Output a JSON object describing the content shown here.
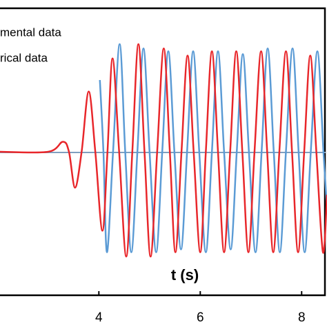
{
  "chart_data": {
    "type": "line",
    "x_label": "t (s)",
    "xlim": [
      2.05,
      8.5
    ],
    "xticks": [
      4,
      6,
      8
    ],
    "ylim": [
      -1,
      1
    ],
    "series": [
      {
        "name": "mental data",
        "color": "#5b9bd5",
        "x": [
          4.02,
          4.09,
          4.16,
          4.28,
          4.41,
          4.52,
          4.64,
          4.76,
          4.88,
          5.0,
          5.13,
          5.25,
          5.37,
          5.49,
          5.62,
          5.74,
          5.86,
          5.98,
          6.11,
          6.23,
          6.35,
          6.47,
          6.6,
          6.72,
          6.84,
          6.96,
          7.09,
          7.21,
          7.33,
          7.45,
          7.57,
          7.69,
          7.82,
          7.94,
          8.06,
          8.18,
          8.31,
          8.43,
          8.5
        ],
        "values": [
          0.5,
          0,
          -0.7,
          0,
          0.75,
          0,
          -0.7,
          0,
          0.72,
          0,
          -0.7,
          0,
          0.7,
          0,
          -0.68,
          0,
          0.7,
          0,
          -0.7,
          0,
          0.7,
          0,
          -0.68,
          0,
          0.68,
          0,
          -0.7,
          0,
          0.72,
          0,
          -0.7,
          0,
          0.72,
          0,
          -0.7,
          0,
          0.7,
          0,
          -0.4
        ]
      },
      {
        "name": "rical data",
        "color": "#e8262a",
        "x": [
          2.05,
          3.0,
          3.29,
          3.41,
          3.53,
          3.66,
          3.8,
          3.93,
          4.07,
          4.17,
          4.27,
          4.4,
          4.54,
          4.66,
          4.78,
          4.9,
          5.02,
          5.15,
          5.28,
          5.4,
          5.51,
          5.63,
          5.75,
          5.87,
          6.0,
          6.11,
          6.23,
          6.35,
          6.47,
          6.59,
          6.71,
          6.83,
          6.95,
          7.07,
          7.2,
          7.32,
          7.44,
          7.56,
          7.69,
          7.81,
          7.93,
          8.05,
          8.17,
          8.29,
          8.42,
          8.5
        ],
        "values": [
          0,
          0,
          0.07,
          0,
          -0.25,
          0,
          0.42,
          0,
          -0.55,
          0,
          0.65,
          0,
          -0.73,
          0,
          0.75,
          0,
          -0.73,
          0,
          0.72,
          0,
          -0.7,
          0,
          0.67,
          0,
          -0.7,
          0,
          0.7,
          0,
          -0.7,
          0,
          0.7,
          0,
          -0.7,
          0,
          0.7,
          0,
          -0.7,
          0,
          0.7,
          0,
          -0.7,
          0,
          0.67,
          0,
          -0.7,
          -0.3
        ]
      }
    ]
  }
}
